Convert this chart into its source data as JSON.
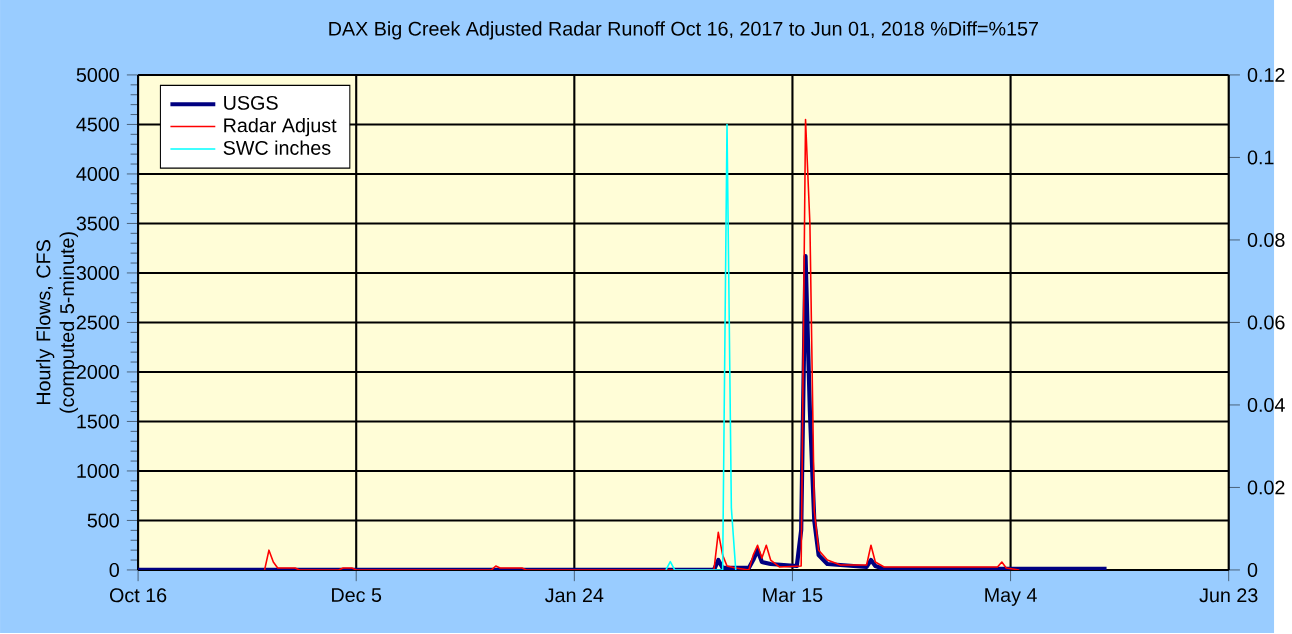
{
  "chart_data": {
    "type": "line",
    "title": "DAX Big Creek Adjusted Radar Runoff Oct 16, 2017 to Jun 01, 2018 %Diff=%157",
    "ylabel": "Hourly Flows, CFS (computed 5-minute)",
    "xlim": [
      "2017-10-16",
      "2018-06-23"
    ],
    "xticks": [
      {
        "value": "2017-10-16",
        "label": "Oct 16"
      },
      {
        "value": "2017-12-05",
        "label": "Dec 5"
      },
      {
        "value": "2018-01-24",
        "label": "Jan 24"
      },
      {
        "value": "2018-03-15",
        "label": "Mar 15"
      },
      {
        "value": "2018-05-04",
        "label": "May 4"
      },
      {
        "value": "2018-06-23",
        "label": "Jun 23"
      }
    ],
    "ylim": [
      0,
      5000
    ],
    "yticks": [
      0,
      500,
      1000,
      1500,
      2000,
      2500,
      3000,
      3500,
      4000,
      4500,
      5000
    ],
    "y2lim": [
      0,
      0.12
    ],
    "y2ticks": [
      0,
      0.02,
      0.04,
      0.06,
      0.08,
      0.1,
      0.12
    ],
    "grid": true,
    "legend": "top left",
    "marker": "none",
    "series": [
      {
        "name": "USGS",
        "color": "#000080",
        "x": [
          "2017-10-16",
          "2018-02-25",
          "2018-02-26",
          "2018-02-27",
          "2018-03-05",
          "2018-03-06",
          "2018-03-07",
          "2018-03-08",
          "2018-03-10",
          "2018-03-16",
          "2018-03-17",
          "2018-03-18",
          "2018-03-19",
          "2018-03-20",
          "2018-03-21",
          "2018-03-23",
          "2018-04-01",
          "2018-04-02",
          "2018-04-03",
          "2018-04-05",
          "2018-05-26"
        ],
        "values": [
          0,
          0,
          100,
          20,
          20,
          100,
          200,
          80,
          60,
          40,
          400,
          3170,
          1600,
          500,
          150,
          60,
          30,
          100,
          40,
          10,
          10
        ]
      },
      {
        "name": "Radar Adjust",
        "color": "#ff0000",
        "x": [
          "2017-11-14",
          "2017-11-15",
          "2017-11-16",
          "2017-11-17",
          "2017-11-21",
          "2017-11-22",
          "2017-12-01",
          "2017-12-02",
          "2017-12-04",
          "2017-12-05",
          "2018-01-05",
          "2018-01-06",
          "2018-01-07",
          "2018-01-12",
          "2018-01-13",
          "2018-02-25",
          "2018-02-26",
          "2018-02-27",
          "2018-02-28",
          "2018-03-02",
          "2018-03-05",
          "2018-03-06",
          "2018-03-07",
          "2018-03-08",
          "2018-03-09",
          "2018-03-10",
          "2018-03-12",
          "2018-03-17",
          "2018-03-18",
          "2018-03-19",
          "2018-03-20",
          "2018-03-21",
          "2018-03-23",
          "2018-03-26",
          "2018-04-01",
          "2018-04-02",
          "2018-04-03",
          "2018-04-05",
          "2018-05-01",
          "2018-05-02",
          "2018-05-03",
          "2018-05-06"
        ],
        "values": [
          0,
          200,
          80,
          20,
          20,
          0,
          0,
          20,
          20,
          0,
          0,
          40,
          20,
          20,
          0,
          0,
          380,
          150,
          40,
          20,
          0,
          150,
          250,
          120,
          250,
          100,
          30,
          40,
          4550,
          3500,
          600,
          200,
          100,
          50,
          50,
          250,
          80,
          30,
          30,
          80,
          20,
          0
        ]
      },
      {
        "name": "SWC inches",
        "color": "#00ffff",
        "axis": "y2",
        "x": [
          "2018-02-14",
          "2018-02-15",
          "2018-02-16",
          "2018-02-27",
          "2018-02-28",
          "2018-03-01",
          "2018-03-02"
        ],
        "values": [
          0,
          0.002,
          0,
          0,
          0.108,
          0.015,
          0
        ]
      }
    ]
  }
}
